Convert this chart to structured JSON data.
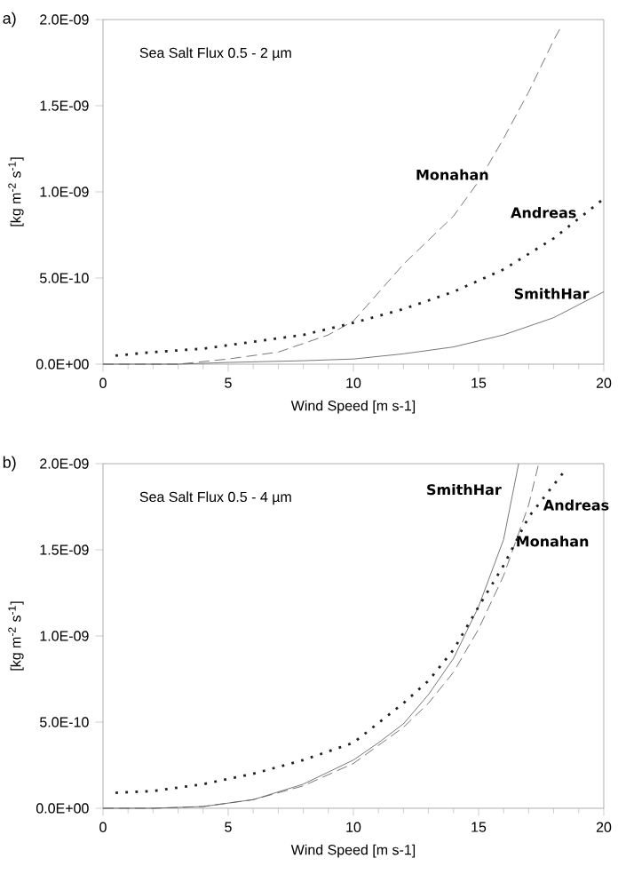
{
  "chart_data": [
    {
      "type": "line",
      "title": "a)",
      "annotations": [
        "Sea Salt Flux 0.5 - 2 µm"
      ],
      "xlabel": "Wind Speed [m s-1]",
      "ylabel": "[kg m$^{-2}$ s$^{-1}$]",
      "xlim": [
        0,
        20
      ],
      "ylim": [
        0,
        2e-09
      ],
      "xticks": [
        0,
        5,
        10,
        15,
        20
      ],
      "yticks": [
        {
          "value": 0,
          "label": "0.0E+00"
        },
        {
          "value": 5e-10,
          "label": "5.0E-10"
        },
        {
          "value": 1e-09,
          "label": "1.0E-09"
        },
        {
          "value": 1.5e-09,
          "label": "1.5E-09"
        },
        {
          "value": 2e-09,
          "label": "2.0E-09"
        }
      ],
      "series": [
        {
          "name": "Monahan",
          "color": "#555555",
          "line_style": "dashed",
          "x": [
            0,
            3,
            5,
            7,
            8,
            9,
            10,
            12,
            14,
            15,
            16,
            17,
            18,
            18.3
          ],
          "values": [
            0,
            0,
            3e-11,
            7e-11,
            1.2e-10,
            1.7e-10,
            2.5e-10,
            5.8e-10,
            8.6e-10,
            1.06e-09,
            1.31e-09,
            1.58e-09,
            1.88e-09,
            1.96e-09
          ]
        },
        {
          "name": "Andreas",
          "color": "#222222",
          "line_style": "dotted",
          "x": [
            0.5,
            2,
            4,
            6,
            8,
            10,
            12,
            14,
            16,
            18,
            20
          ],
          "values": [
            5e-11,
            7e-11,
            9e-11,
            1.3e-10,
            1.7e-10,
            2.4e-10,
            3.2e-10,
            4.2e-10,
            5.5e-10,
            7.3e-10,
            9.6e-10
          ]
        },
        {
          "name": "SmithHar",
          "color": "#555555",
          "line_style": "solid",
          "x": [
            0,
            3,
            5,
            8,
            10,
            12,
            14,
            16,
            18,
            20
          ],
          "values": [
            0,
            0,
            1e-11,
            2e-11,
            3e-11,
            6e-11,
            1e-10,
            1.7e-10,
            2.7e-10,
            4.2e-10
          ]
        }
      ]
    },
    {
      "type": "line",
      "title": "b)",
      "annotations": [
        "Sea Salt Flux 0.5 - 4 µm"
      ],
      "xlabel": "Wind Speed [m s-1]",
      "ylabel": "[kg m$^{-2}$ s$^{-1}$]",
      "xlim": [
        0,
        20
      ],
      "ylim": [
        0,
        2e-09
      ],
      "xticks": [
        0,
        5,
        10,
        15,
        20
      ],
      "yticks": [
        {
          "value": 0,
          "label": "0.0E+00"
        },
        {
          "value": 5e-10,
          "label": "5.0E-10"
        },
        {
          "value": 1e-09,
          "label": "1.0E-09"
        },
        {
          "value": 1.5e-09,
          "label": "1.5E-09"
        },
        {
          "value": 2e-09,
          "label": "2.0E-09"
        }
      ],
      "series": [
        {
          "name": "SmithHar",
          "color": "#555555",
          "line_style": "solid",
          "x": [
            0,
            2,
            4,
            6,
            8,
            10,
            11,
            12,
            13,
            14,
            15,
            16,
            16.6
          ],
          "values": [
            0,
            0,
            1e-11,
            5e-11,
            1.4e-10,
            2.8e-10,
            3.8e-10,
            4.9e-10,
            6.6e-10,
            8.7e-10,
            1.17e-09,
            1.56e-09,
            2e-09
          ]
        },
        {
          "name": "Monahan",
          "color": "#555555",
          "line_style": "dashed",
          "x": [
            0,
            2,
            4,
            6,
            8,
            10,
            12,
            13,
            14,
            15,
            16,
            17,
            17.4
          ],
          "values": [
            0,
            0,
            1e-11,
            5e-11,
            1.3e-10,
            2.6e-10,
            4.7e-10,
            6.1e-10,
            7.9e-10,
            1.04e-09,
            1.35e-09,
            1.76e-09,
            2e-09
          ]
        },
        {
          "name": "Andreas",
          "color": "#222222",
          "line_style": "dotted",
          "x": [
            0.5,
            2,
            4,
            6,
            8,
            10,
            12,
            13,
            14,
            15,
            16,
            17,
            18.5
          ],
          "values": [
            9e-11,
            1e-10,
            1.4e-10,
            2e-10,
            2.8e-10,
            3.8e-10,
            6.1e-10,
            7.4e-10,
            9.2e-10,
            1.17e-09,
            1.41e-09,
            1.69e-09,
            1.97e-09
          ]
        }
      ]
    }
  ]
}
